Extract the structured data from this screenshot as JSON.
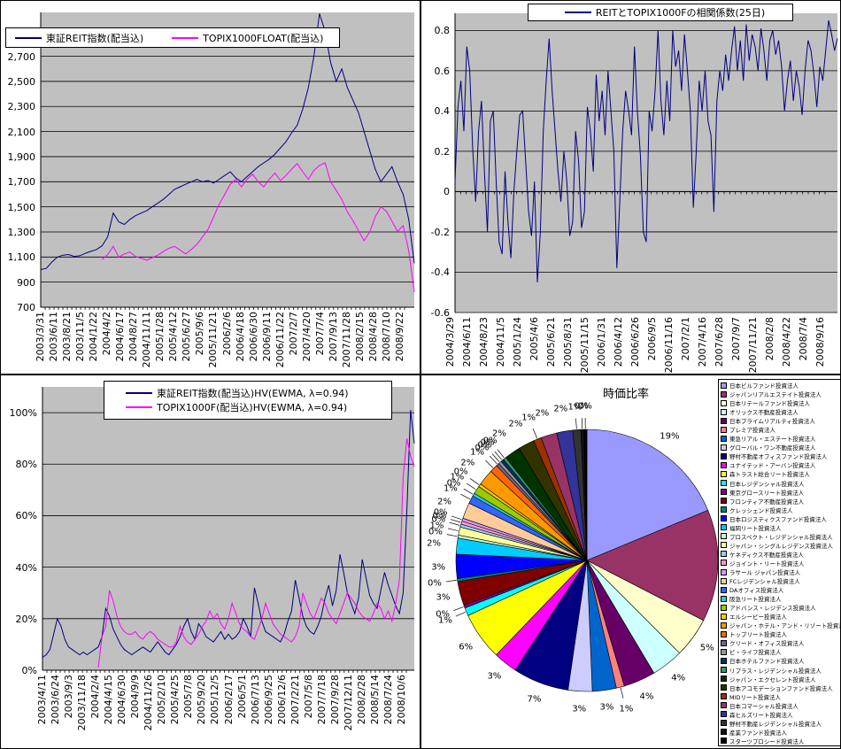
{
  "page": {
    "background": "#FFFFFF",
    "plot_background": "#C0C0C0",
    "grid_color": "#000000"
  },
  "chart_data": [
    {
      "id": "reit_index",
      "type": "line",
      "title": "",
      "grid": "on",
      "legend_position": "top",
      "series": [
        {
          "name": "東証REIT指数(配当込)",
          "color": "#000080",
          "values": [
            1000,
            1010,
            1060,
            1100,
            1115,
            1120,
            1105,
            1110,
            1130,
            1145,
            1160,
            1190,
            1260,
            1450,
            1380,
            1360,
            1400,
            1430,
            1450,
            1470,
            1500,
            1530,
            1560,
            1600,
            1640,
            1660,
            1680,
            1700,
            1720,
            1700,
            1710,
            1690,
            1720,
            1750,
            1780,
            1730,
            1700,
            1740,
            1780,
            1820,
            1850,
            1880,
            1920,
            1970,
            2020,
            2090,
            2150,
            2280,
            2450,
            2700,
            3040,
            2900,
            2650,
            2500,
            2600,
            2450,
            2350,
            2250,
            2100,
            1950,
            1800,
            1700,
            1760,
            1820,
            1700,
            1600,
            1400,
            1050
          ]
        },
        {
          "name": "TOPIX1000FLOAT(配当込)",
          "color": "#FF00FF",
          "values": [
            null,
            null,
            null,
            null,
            null,
            null,
            null,
            null,
            null,
            null,
            null,
            1080,
            1120,
            1185,
            1100,
            1125,
            1140,
            1105,
            1090,
            1075,
            1095,
            1115,
            1145,
            1170,
            1185,
            1155,
            1125,
            1160,
            1200,
            1260,
            1320,
            1420,
            1520,
            1600,
            1680,
            1720,
            1660,
            1720,
            1760,
            1700,
            1660,
            1720,
            1770,
            1710,
            1750,
            1800,
            1845,
            1780,
            1720,
            1790,
            1830,
            1850,
            1700,
            1630,
            1560,
            1460,
            1390,
            1310,
            1230,
            1300,
            1420,
            1500,
            1465,
            1385,
            1305,
            1350,
            1150,
            820
          ]
        }
      ],
      "y_axis": {
        "min": 700,
        "max": 3050,
        "ticks": [
          {
            "v": 2700,
            "label": "2,700"
          },
          {
            "v": 2500,
            "label": "2,500"
          },
          {
            "v": 2300,
            "label": "2,300"
          },
          {
            "v": 2100,
            "label": "2,100"
          },
          {
            "v": 1900,
            "label": "1,900"
          },
          {
            "v": 1700,
            "label": "1,700"
          },
          {
            "v": 1500,
            "label": "1,500"
          },
          {
            "v": 1300,
            "label": "1,300"
          },
          {
            "v": 1100,
            "label": "1,100"
          },
          {
            "v": 900,
            "label": "900"
          },
          {
            "v": 700,
            "label": "700"
          }
        ]
      },
      "x_ticks": [
        "2003/3/31",
        "2003/6/11",
        "2003/8/21",
        "2003/11/5",
        "2004/1/22",
        "2004/4/2",
        "2004/6/17",
        "2004/8/27",
        "2004/11/11",
        "2005/1/28",
        "2005/4/12",
        "2005/6/27",
        "2005/9/6",
        "2005/11/21",
        "2006/2/6",
        "2006/4/18",
        "2006/6/30",
        "2006/9/11",
        "2006/11/22",
        "2007/2/7",
        "2007/4/20",
        "2007/7/4",
        "2007/9/13",
        "2007/11/28",
        "2008/2/15",
        "2008/4/28",
        "2008/7/10",
        "2008/9/22"
      ]
    },
    {
      "id": "reit_topix_correlation",
      "type": "line",
      "title": "",
      "grid": "on",
      "legend_position": "top",
      "series": [
        {
          "name": "REITとTOPIX1000Fの相関係数(25日)",
          "color": "#000080",
          "values": [
            0.05,
            0.42,
            0.55,
            0.3,
            0.72,
            0.6,
            0.22,
            -0.05,
            0.3,
            0.45,
            0.1,
            -0.2,
            0.35,
            0.4,
            0.05,
            -0.25,
            -0.31,
            0.1,
            -0.15,
            -0.33,
            0.0,
            0.2,
            0.38,
            0.4,
            0.15,
            -0.1,
            -0.22,
            0.05,
            -0.45,
            -0.2,
            0.3,
            0.55,
            0.76,
            0.5,
            0.3,
            0.1,
            -0.05,
            0.2,
            0.05,
            -0.22,
            -0.15,
            0.3,
            0.15,
            -0.18,
            -0.1,
            0.42,
            0.3,
            0.1,
            0.58,
            0.35,
            0.5,
            0.28,
            0.6,
            0.4,
            0.2,
            -0.38,
            -0.05,
            0.3,
            0.5,
            0.4,
            0.28,
            0.72,
            0.4,
            0.18,
            -0.2,
            -0.25,
            0.4,
            0.3,
            0.5,
            0.8,
            0.45,
            0.28,
            0.55,
            0.35,
            0.8,
            0.62,
            0.7,
            0.5,
            0.78,
            0.6,
            0.4,
            -0.08,
            0.2,
            0.55,
            0.4,
            0.6,
            0.35,
            0.28,
            -0.1,
            0.45,
            0.6,
            0.5,
            0.68,
            0.55,
            0.7,
            0.82,
            0.6,
            0.75,
            0.55,
            0.83,
            0.65,
            0.78,
            0.72,
            0.6,
            0.81,
            0.7,
            0.55,
            0.75,
            0.8,
            0.68,
            0.75,
            0.62,
            0.4,
            0.55,
            0.65,
            0.45,
            0.6,
            0.52,
            0.38,
            0.6,
            0.75,
            0.7,
            0.58,
            0.42,
            0.62,
            0.55,
            0.7,
            0.85,
            0.78,
            0.7,
            0.76
          ]
        }
      ],
      "y_axis": {
        "min": -0.6,
        "max": 0.885,
        "cross": 0,
        "ticks": [
          {
            "v": 0.8,
            "label": "0.8"
          },
          {
            "v": 0.6,
            "label": "0.6"
          },
          {
            "v": 0.4,
            "label": "0.4"
          },
          {
            "v": 0.2,
            "label": "0.2"
          },
          {
            "v": 0,
            "label": "0"
          },
          {
            "v": -0.2,
            "label": "-0.2"
          },
          {
            "v": -0.4,
            "label": "-0.4"
          },
          {
            "v": -0.6,
            "label": "-0.6"
          }
        ]
      },
      "x_ticks": [
        "2004/3/29",
        "2004/6/11",
        "2004/8/23",
        "2004/11/5",
        "2005/1/24",
        "2005/4/6",
        "2005/6/21",
        "2005/8/31",
        "2005/11/15",
        "2006/1/31",
        "2006/4/12",
        "2006/6/26",
        "2006/9/5",
        "2006/11/16",
        "2007/2/1",
        "2007/4/16",
        "2007/6/28",
        "2007/9/7",
        "2007/11/21",
        "2008/2/8",
        "2008/4/22",
        "2008/7/4",
        "2008/9/16"
      ]
    },
    {
      "id": "historical_volatility",
      "type": "line",
      "title": "",
      "grid": "on",
      "legend_position": "top",
      "series": [
        {
          "name": "東証REIT指数(配当込)HV(EWMA, λ=0.94)",
          "color": "#000080",
          "values": [
            5,
            6,
            8,
            14,
            20,
            17,
            12,
            9,
            8,
            7,
            6,
            7,
            6,
            7,
            8,
            9,
            13,
            24,
            21,
            16,
            13,
            10,
            8,
            7,
            6,
            7,
            8,
            9,
            8,
            7,
            9,
            11,
            9,
            7,
            6,
            8,
            10,
            13,
            17,
            20,
            15,
            12,
            18,
            16,
            13,
            12,
            11,
            13,
            15,
            12,
            14,
            12,
            13,
            15,
            20,
            17,
            13,
            32,
            26,
            19,
            15,
            14,
            13,
            12,
            11,
            14,
            19,
            23,
            35,
            28,
            21,
            17,
            15,
            14,
            17,
            21,
            28,
            33,
            25,
            31,
            45,
            38,
            30,
            26,
            22,
            28,
            43,
            36,
            29,
            26,
            24,
            31,
            38,
            33,
            29,
            25,
            22,
            30,
            62,
            101,
            88
          ]
        },
        {
          "name": "TOPIX1000F(配当込)HV(EWMA, λ=0.94)",
          "color": "#FF00FF",
          "values": [
            null,
            null,
            null,
            null,
            null,
            null,
            null,
            null,
            null,
            null,
            null,
            null,
            null,
            null,
            null,
            1,
            13,
            17,
            31,
            27,
            21,
            17,
            15,
            14,
            14,
            15,
            13,
            12,
            14,
            15,
            14,
            12,
            11,
            10,
            9,
            9,
            11,
            17,
            13,
            11,
            10,
            12,
            14,
            17,
            19,
            23,
            20,
            22,
            18,
            16,
            20,
            26,
            22,
            18,
            16,
            15,
            13,
            12,
            16,
            20,
            26,
            22,
            18,
            16,
            14,
            13,
            12,
            11,
            13,
            17,
            30,
            26,
            22,
            20,
            24,
            28,
            26,
            22,
            20,
            18,
            22,
            26,
            30,
            28,
            26,
            23,
            21,
            20,
            19,
            22,
            26,
            24,
            20,
            23,
            19,
            26,
            35,
            75,
            90,
            83,
            79
          ]
        }
      ],
      "y_axis": {
        "min": 0,
        "max": 110,
        "ticks": [
          {
            "v": 100,
            "label": "100%"
          },
          {
            "v": 80,
            "label": "80%"
          },
          {
            "v": 60,
            "label": "60%"
          },
          {
            "v": 40,
            "label": "40%"
          },
          {
            "v": 20,
            "label": "20%"
          },
          {
            "v": 0,
            "label": "0%"
          }
        ]
      },
      "x_ticks": [
        "2003/4/11",
        "2003/6/24",
        "2003/9/3",
        "2003/11/18",
        "2004/2/4",
        "2004/4/15",
        "2004/6/30",
        "2004/9/9",
        "2004/11/26",
        "2005/2/10",
        "2005/4/25",
        "2005/7/8",
        "2005/9/20",
        "2005/12/5",
        "2006/2/17",
        "2006/5/1",
        "2006/7/13",
        "2006/9/25",
        "2006/12/6",
        "2007/2/21",
        "2007/5/8",
        "2007/7/18",
        "2007/9/28",
        "2007/12/11",
        "2008/2/28",
        "2008/5/14",
        "2008/7/24",
        "2008/10/6"
      ]
    },
    {
      "id": "market_cap_ratio",
      "type": "pie",
      "title": "時価比率",
      "legend_position": "right",
      "slices": [
        {
          "name": "日本ビルファンド投資法人",
          "color": "#9999FF",
          "pct": 19
        },
        {
          "name": "ジャパンリアルエステイト投資法人",
          "color": "#993366",
          "pct": 14
        },
        {
          "name": "日本リテールファンド投資法人",
          "color": "#FFFFCC",
          "pct": 5
        },
        {
          "name": "オリックス不動産投資法人",
          "color": "#CCFFFF",
          "pct": 4
        },
        {
          "name": "日本プライムリアルティ投資法人",
          "color": "#660066",
          "pct": 4
        },
        {
          "name": "プレミア投資法人",
          "color": "#FF8080",
          "pct": 1
        },
        {
          "name": "東急リアル・エステート投資法人",
          "color": "#0066CC",
          "pct": 3
        },
        {
          "name": "グローバル・ワン不動産投資法人",
          "color": "#CCCCFF",
          "pct": 3
        },
        {
          "name": "野村不動産オフィスファンド投資法人",
          "color": "#000080",
          "pct": 7
        },
        {
          "name": "ユナイテッド・アーバン投資法人",
          "color": "#FF00FF",
          "pct": 3
        },
        {
          "name": "森トラスト総合リート投資法人",
          "color": "#FFFF00",
          "pct": 6
        },
        {
          "name": "日本レジデンシャル投資法人",
          "color": "#00FFFF",
          "pct": 1
        },
        {
          "name": "東京グロースリート投資法人",
          "color": "#800080",
          "pct": 0
        },
        {
          "name": "フロンティア不動産投資法人",
          "color": "#800000",
          "pct": 3
        },
        {
          "name": "クレッシェンド投資法人",
          "color": "#008080",
          "pct": 0
        },
        {
          "name": "日本ロジスティクスファンド投資法人",
          "color": "#0000FF",
          "pct": 3
        },
        {
          "name": "福岡リート投資法人",
          "color": "#00CCFF",
          "pct": 2
        },
        {
          "name": "プロスペクト・レジデンシャル投資法人",
          "color": "#CCFFCC",
          "pct": 0
        },
        {
          "name": "ジャパン・シングルレジデンス投資法人",
          "color": "#FFFF99",
          "pct": 1
        },
        {
          "name": "ケネディクス不動産投資法人",
          "color": "#99CCFF",
          "pct": 0
        },
        {
          "name": "ジョイント・リート投資法人",
          "color": "#FF99CC",
          "pct": 0
        },
        {
          "name": "ラサール ジャパン投資法人",
          "color": "#CC99FF",
          "pct": 0
        },
        {
          "name": "FCレジデンシャル投資法人",
          "color": "#FFCC99",
          "pct": 2
        },
        {
          "name": "DAオフィス投資法人",
          "color": "#3366FF",
          "pct": 1
        },
        {
          "name": "阪急リート投資法人",
          "color": "#33CCCC",
          "pct": 0
        },
        {
          "name": "アドバンス・レジデンス投資法人",
          "color": "#99CC00",
          "pct": 1
        },
        {
          "name": "エルシーピー投資法人",
          "color": "#FFCC00",
          "pct": 0
        },
        {
          "name": "ジャパン・ホテル・アンド・リゾート投資法人",
          "color": "#FF9900",
          "pct": 2
        },
        {
          "name": "トップリート投資法人",
          "color": "#FF6600",
          "pct": 1
        },
        {
          "name": "クリード・オフィス投資法人",
          "color": "#666699",
          "pct": 0
        },
        {
          "name": "ビ・ライフ投資法人",
          "color": "#969696",
          "pct": 0
        },
        {
          "name": "日本ホテルファンド投資法人",
          "color": "#003366",
          "pct": 0
        },
        {
          "name": "リプラス・レジデンシャル投資法人",
          "color": "#339966",
          "pct": 0
        },
        {
          "name": "ジャパン・エクセレント投資法人",
          "color": "#003300",
          "pct": 2
        },
        {
          "name": "日本アコモデーションファンド投資法人",
          "color": "#333300",
          "pct": 2
        },
        {
          "name": "MIDリート投資法人",
          "color": "#993300",
          "pct": 1
        },
        {
          "name": "日本コマーシャル投資法人",
          "color": "#993366",
          "pct": 2
        },
        {
          "name": "森ヒルズリート投資法人",
          "color": "#333399",
          "pct": 2
        },
        {
          "name": "野村不動産レジデンシャル投資法人",
          "color": "#333333",
          "pct": 1
        },
        {
          "name": "産業ファンド投資法人",
          "color": "#111111",
          "pct": 0
        },
        {
          "name": "スターツプロシード投資法人",
          "color": "#000000",
          "pct": 0
        }
      ]
    }
  ]
}
